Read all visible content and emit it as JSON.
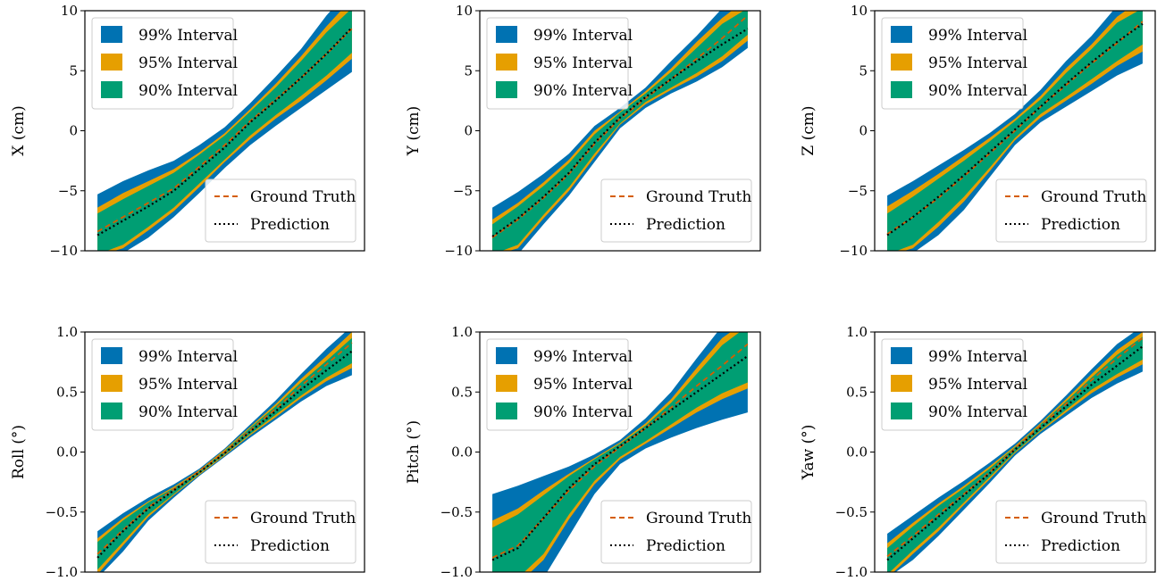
{
  "colors": {
    "interval_99": "#0072b2",
    "interval_95": "#e69f00",
    "interval_90": "#009e73",
    "ground_truth": "#d55e00",
    "prediction": "#000000"
  },
  "chart_data": [
    {
      "type": "area",
      "ylabel": "X (cm)",
      "ylim": [
        -10,
        10
      ],
      "yticks": [
        -10,
        -5,
        0,
        5,
        10
      ],
      "ytick_labels": [
        "−10",
        "−5",
        "0",
        "5",
        "10"
      ],
      "x": [
        0,
        0.1,
        0.2,
        0.3,
        0.4,
        0.5,
        0.6,
        0.7,
        0.8,
        0.9,
        1.0
      ],
      "legend_intervals": [
        "99% Interval",
        "95% Interval",
        "90% Interval"
      ],
      "legend_lines": [
        "Ground Truth",
        "Prediction"
      ],
      "prediction": [
        -8.7,
        -7.5,
        -6.3,
        -5.0,
        -3.2,
        -1.4,
        0.7,
        2.5,
        4.4,
        6.4,
        8.6
      ],
      "ground_truth": [
        -8.4,
        -7.2,
        -6.0,
        -4.8,
        -3.0,
        -1.2,
        0.8,
        2.6,
        4.4,
        6.4,
        8.5
      ],
      "bands": {
        "i99_upper": [
          -5.3,
          -4.2,
          -3.3,
          -2.5,
          -1.2,
          0.3,
          2.3,
          4.5,
          6.8,
          9.6,
          12.0
        ],
        "i99_lower": [
          -10.5,
          -10.2,
          -8.9,
          -7.2,
          -5.2,
          -3.1,
          -1.2,
          0.4,
          1.9,
          3.4,
          4.9
        ],
        "i95_upper": [
          -6.4,
          -5.2,
          -4.2,
          -3.2,
          -1.8,
          -0.2,
          1.8,
          3.9,
          6.2,
          8.7,
          11.0
        ],
        "i95_lower": [
          -10.4,
          -9.8,
          -8.3,
          -6.7,
          -4.7,
          -2.6,
          -0.7,
          1.0,
          2.5,
          4.2,
          6.0
        ],
        "i90_upper": [
          -6.9,
          -5.7,
          -4.6,
          -3.5,
          -2.0,
          -0.4,
          1.6,
          3.6,
          5.8,
          8.2,
          10.2
        ],
        "i90_lower": [
          -10.3,
          -9.5,
          -8.0,
          -6.4,
          -4.4,
          -2.4,
          -0.4,
          1.3,
          2.9,
          4.6,
          6.5
        ]
      }
    },
    {
      "type": "area",
      "ylabel": "Y (cm)",
      "ylim": [
        -10,
        10
      ],
      "yticks": [
        -10,
        -5,
        0,
        5,
        10
      ],
      "ytick_labels": [
        "−10",
        "−5",
        "0",
        "5",
        "10"
      ],
      "x": [
        0,
        0.1,
        0.2,
        0.3,
        0.4,
        0.5,
        0.6,
        0.7,
        0.8,
        0.9,
        1.0
      ],
      "legend_intervals": [
        "99% Interval",
        "95% Interval",
        "90% Interval"
      ],
      "legend_lines": [
        "Ground Truth",
        "Prediction"
      ],
      "prediction": [
        -8.8,
        -7.3,
        -5.5,
        -3.5,
        -1.0,
        1.1,
        2.8,
        4.3,
        5.8,
        7.2,
        8.5
      ],
      "ground_truth": [
        -8.9,
        -7.4,
        -5.6,
        -3.6,
        -1.1,
        1.0,
        2.7,
        4.3,
        6.0,
        7.7,
        9.6
      ],
      "bands": {
        "i99_upper": [
          -6.4,
          -5.1,
          -3.6,
          -1.9,
          0.4,
          1.9,
          3.6,
          5.8,
          7.9,
          10.2,
          12.0
        ],
        "i99_lower": [
          -10.5,
          -10.3,
          -7.8,
          -5.4,
          -2.6,
          0.2,
          1.9,
          3.1,
          4.1,
          5.3,
          6.9
        ],
        "i95_upper": [
          -7.4,
          -6.0,
          -4.3,
          -2.4,
          0.0,
          1.6,
          3.3,
          5.2,
          7.4,
          9.4,
          11.0
        ],
        "i95_lower": [
          -10.4,
          -9.8,
          -7.3,
          -5.0,
          -2.2,
          0.5,
          2.2,
          3.4,
          4.5,
          5.8,
          7.5
        ],
        "i90_upper": [
          -7.8,
          -6.3,
          -4.6,
          -2.7,
          -0.3,
          1.5,
          3.1,
          4.9,
          6.9,
          8.9,
          10.2
        ],
        "i90_lower": [
          -10.3,
          -9.5,
          -7.0,
          -4.7,
          -1.9,
          0.6,
          2.4,
          3.6,
          4.8,
          6.2,
          8.0
        ]
      }
    },
    {
      "type": "area",
      "ylabel": "Z (cm)",
      "ylim": [
        -10,
        10
      ],
      "yticks": [
        -10,
        -5,
        0,
        5,
        10
      ],
      "ytick_labels": [
        "−10",
        "−5",
        "0",
        "5",
        "10"
      ],
      "x": [
        0,
        0.1,
        0.2,
        0.3,
        0.4,
        0.5,
        0.6,
        0.7,
        0.8,
        0.9,
        1.0
      ],
      "legend_intervals": [
        "99% Interval",
        "95% Interval",
        "90% Interval"
      ],
      "legend_lines": [
        "Ground Truth",
        "Prediction"
      ],
      "prediction": [
        -8.7,
        -7.2,
        -5.5,
        -3.7,
        -1.8,
        0.1,
        2.0,
        3.9,
        5.7,
        7.4,
        8.9
      ],
      "ground_truth": [
        -8.6,
        -7.2,
        -5.6,
        -3.8,
        -1.9,
        0.0,
        2.0,
        3.8,
        5.6,
        7.3,
        9.1
      ],
      "bands": {
        "i99_upper": [
          -5.4,
          -4.2,
          -2.9,
          -1.6,
          -0.2,
          1.4,
          3.4,
          5.8,
          7.9,
          10.4,
          12.0
        ],
        "i99_lower": [
          -10.5,
          -10.2,
          -8.7,
          -6.6,
          -3.9,
          -1.2,
          0.7,
          2.0,
          3.3,
          4.6,
          5.6
        ],
        "i95_upper": [
          -6.3,
          -5.0,
          -3.6,
          -2.1,
          -0.6,
          1.0,
          2.9,
          5.2,
          7.2,
          9.5,
          11.0
        ],
        "i95_lower": [
          -10.4,
          -9.8,
          -8.0,
          -5.9,
          -3.4,
          -0.8,
          1.1,
          2.5,
          3.9,
          5.4,
          6.6
        ],
        "i90_upper": [
          -6.9,
          -5.5,
          -4.0,
          -2.5,
          -0.9,
          0.8,
          2.6,
          4.8,
          6.8,
          9.0,
          10.2
        ],
        "i90_lower": [
          -10.3,
          -9.5,
          -7.6,
          -5.5,
          -3.1,
          -0.6,
          1.4,
          2.8,
          4.3,
          5.8,
          7.2
        ]
      }
    },
    {
      "type": "area",
      "ylabel": "Roll (°)",
      "ylim": [
        -1.0,
        1.0
      ],
      "yticks": [
        -1.0,
        -0.5,
        0.0,
        0.5,
        1.0
      ],
      "ytick_labels": [
        "−1.0",
        "−0.5",
        "0.0",
        "0.5",
        "1.0"
      ],
      "x": [
        0,
        0.1,
        0.2,
        0.3,
        0.4,
        0.5,
        0.6,
        0.7,
        0.8,
        0.9,
        1.0
      ],
      "legend_intervals": [
        "99% Interval",
        "95% Interval",
        "90% Interval"
      ],
      "legend_lines": [
        "Ground Truth",
        "Prediction"
      ],
      "prediction": [
        -0.88,
        -0.66,
        -0.47,
        -0.32,
        -0.17,
        -0.01,
        0.17,
        0.34,
        0.52,
        0.68,
        0.84
      ],
      "ground_truth": [
        -0.85,
        -0.65,
        -0.46,
        -0.31,
        -0.16,
        0.0,
        0.18,
        0.36,
        0.55,
        0.73,
        0.91
      ],
      "bands": {
        "i99_upper": [
          -0.66,
          -0.51,
          -0.38,
          -0.27,
          -0.14,
          0.03,
          0.23,
          0.43,
          0.65,
          0.86,
          1.05
        ],
        "i99_lower": [
          -1.05,
          -0.83,
          -0.57,
          -0.38,
          -0.2,
          -0.04,
          0.12,
          0.27,
          0.42,
          0.55,
          0.64
        ],
        "i95_upper": [
          -0.72,
          -0.55,
          -0.41,
          -0.29,
          -0.15,
          0.02,
          0.21,
          0.4,
          0.61,
          0.8,
          1.0
        ],
        "i95_lower": [
          -1.02,
          -0.78,
          -0.54,
          -0.36,
          -0.19,
          -0.03,
          0.14,
          0.29,
          0.45,
          0.59,
          0.7
        ],
        "i90_upper": [
          -0.75,
          -0.57,
          -0.42,
          -0.3,
          -0.16,
          0.01,
          0.2,
          0.38,
          0.58,
          0.76,
          0.95
        ],
        "i90_lower": [
          -0.98,
          -0.75,
          -0.52,
          -0.35,
          -0.18,
          -0.02,
          0.15,
          0.31,
          0.47,
          0.62,
          0.74
        ]
      }
    },
    {
      "type": "area",
      "ylabel": "Pitch (°)",
      "ylim": [
        -1.0,
        1.0
      ],
      "yticks": [
        -1.0,
        -0.5,
        0.0,
        0.5,
        1.0
      ],
      "ytick_labels": [
        "−1.0",
        "−0.5",
        "0.0",
        "0.5",
        "1.0"
      ],
      "x": [
        0,
        0.1,
        0.2,
        0.3,
        0.4,
        0.5,
        0.6,
        0.7,
        0.8,
        0.9,
        1.0
      ],
      "legend_intervals": [
        "99% Interval",
        "95% Interval",
        "90% Interval"
      ],
      "legend_lines": [
        "Ground Truth",
        "Prediction"
      ],
      "prediction": [
        -0.9,
        -0.8,
        -0.55,
        -0.3,
        -0.1,
        0.05,
        0.2,
        0.35,
        0.5,
        0.65,
        0.8
      ],
      "ground_truth": [
        -0.88,
        -0.78,
        -0.55,
        -0.32,
        -0.12,
        0.04,
        0.2,
        0.37,
        0.55,
        0.72,
        0.9
      ],
      "bands": {
        "i99_upper": [
          -0.35,
          -0.28,
          -0.2,
          -0.12,
          -0.02,
          0.1,
          0.28,
          0.5,
          0.78,
          1.05,
          1.2
        ],
        "i99_lower": [
          -1.1,
          -1.1,
          -1.05,
          -0.7,
          -0.35,
          -0.1,
          0.03,
          0.12,
          0.2,
          0.27,
          0.33
        ],
        "i95_upper": [
          -0.57,
          -0.47,
          -0.32,
          -0.18,
          -0.05,
          0.08,
          0.24,
          0.44,
          0.7,
          0.95,
          1.1
        ],
        "i95_lower": [
          -1.1,
          -1.1,
          -0.9,
          -0.56,
          -0.27,
          -0.06,
          0.07,
          0.2,
          0.33,
          0.44,
          0.53
        ],
        "i90_upper": [
          -0.63,
          -0.52,
          -0.36,
          -0.2,
          -0.06,
          0.07,
          0.22,
          0.41,
          0.65,
          0.89,
          1.05
        ],
        "i90_lower": [
          -1.1,
          -1.05,
          -0.85,
          -0.52,
          -0.24,
          -0.04,
          0.09,
          0.23,
          0.37,
          0.49,
          0.58
        ]
      }
    },
    {
      "type": "area",
      "ylabel": "Yaw (°)",
      "ylim": [
        -1.0,
        1.0
      ],
      "yticks": [
        -1.0,
        -0.5,
        0.0,
        0.5,
        1.0
      ],
      "ytick_labels": [
        "−1.0",
        "−0.5",
        "0.0",
        "0.5",
        "1.0"
      ],
      "x": [
        0,
        0.1,
        0.2,
        0.3,
        0.4,
        0.5,
        0.6,
        0.7,
        0.8,
        0.9,
        1.0
      ],
      "legend_intervals": [
        "99% Interval",
        "95% Interval",
        "90% Interval"
      ],
      "legend_lines": [
        "Ground Truth",
        "Prediction"
      ],
      "prediction": [
        -0.9,
        -0.72,
        -0.54,
        -0.36,
        -0.18,
        0.02,
        0.2,
        0.38,
        0.56,
        0.72,
        0.88
      ],
      "ground_truth": [
        -0.87,
        -0.7,
        -0.52,
        -0.35,
        -0.17,
        0.03,
        0.22,
        0.4,
        0.6,
        0.78,
        0.95
      ],
      "bands": {
        "i99_upper": [
          -0.68,
          -0.53,
          -0.38,
          -0.24,
          -0.09,
          0.07,
          0.26,
          0.47,
          0.69,
          0.9,
          1.05
        ],
        "i99_lower": [
          -1.05,
          -0.9,
          -0.7,
          -0.48,
          -0.26,
          -0.03,
          0.15,
          0.3,
          0.45,
          0.57,
          0.67
        ],
        "i95_upper": [
          -0.76,
          -0.59,
          -0.43,
          -0.28,
          -0.12,
          0.05,
          0.24,
          0.44,
          0.65,
          0.85,
          1.0
        ],
        "i95_lower": [
          -1.05,
          -0.85,
          -0.66,
          -0.44,
          -0.23,
          -0.01,
          0.17,
          0.33,
          0.49,
          0.62,
          0.73
        ],
        "i90_upper": [
          -0.8,
          -0.62,
          -0.45,
          -0.3,
          -0.14,
          0.04,
          0.23,
          0.42,
          0.62,
          0.81,
          0.96
        ],
        "i90_lower": [
          -1.02,
          -0.82,
          -0.63,
          -0.42,
          -0.21,
          0.0,
          0.18,
          0.35,
          0.52,
          0.65,
          0.77
        ]
      }
    }
  ]
}
